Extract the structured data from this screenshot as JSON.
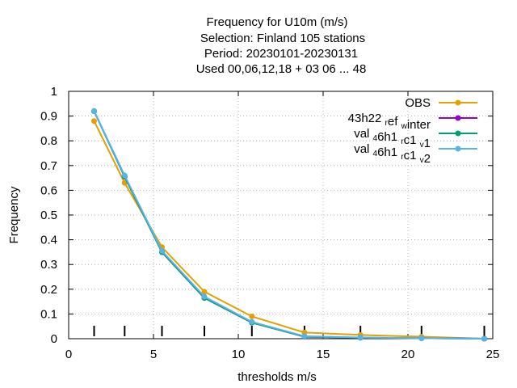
{
  "chart_data": {
    "type": "line",
    "title_lines": [
      "Frequency  for U10m (m/s)",
      "Selection: Finland    105 stations",
      "Period: 20230101-20230131",
      "Used  00,06,12,18  + 03 06 ... 48"
    ],
    "xlabel": "thresholds m/s",
    "ylabel": "Frequency",
    "xlim": [
      0,
      25
    ],
    "ylim": [
      0,
      1
    ],
    "xticks": [
      0,
      5,
      10,
      15,
      20,
      25
    ],
    "yticks": [
      0,
      0.1,
      0.2,
      0.3,
      0.4,
      0.5,
      0.6,
      0.7,
      0.8,
      0.9,
      1
    ],
    "grid": true,
    "legend_position": "top-right",
    "threshold_markers": [
      1.5,
      3.3,
      5.5,
      8.0,
      10.8,
      13.9,
      17.2,
      20.8,
      24.5
    ],
    "series": [
      {
        "name": "OBS",
        "label_parts": [
          {
            "t": "OBS"
          }
        ],
        "color": "#e69f00",
        "x": [
          1.5,
          3.3,
          5.5,
          8.0,
          10.8,
          13.9,
          17.2,
          20.8,
          24.5
        ],
        "y": [
          0.88,
          0.63,
          0.37,
          0.19,
          0.09,
          0.025,
          0.015,
          0.008,
          0.0
        ]
      },
      {
        "name": "43h22_ref_winter",
        "label_parts": [
          {
            "t": "43h22 "
          },
          {
            "t": "r",
            "sub": true
          },
          {
            "t": "ef "
          },
          {
            "t": "w",
            "sub": true
          },
          {
            "t": "inter"
          }
        ],
        "color": "#9400d3",
        "x": [
          1.5,
          3.3,
          5.5,
          8.0,
          10.8,
          13.9,
          17.2,
          20.8,
          24.5
        ],
        "y": [
          0.92,
          0.655,
          0.35,
          0.165,
          0.065,
          0.008,
          0.004,
          0.002,
          0.0
        ]
      },
      {
        "name": "val_46h1_rc1_v1",
        "label_parts": [
          {
            "t": "val "
          },
          {
            "t": "4",
            "sub": true
          },
          {
            "t": "6h1 "
          },
          {
            "t": "r",
            "sub": true
          },
          {
            "t": "c1 "
          },
          {
            "t": "v",
            "sub": true
          },
          {
            "t": "1"
          }
        ],
        "color": "#009e73",
        "x": [
          1.5,
          3.3,
          5.5,
          8.0,
          10.8,
          13.9,
          17.2,
          20.8,
          24.5
        ],
        "y": [
          0.92,
          0.655,
          0.35,
          0.165,
          0.065,
          0.008,
          0.004,
          0.002,
          0.0
        ]
      },
      {
        "name": "val_46h1_rc1_v2",
        "label_parts": [
          {
            "t": "val "
          },
          {
            "t": "4",
            "sub": true
          },
          {
            "t": "6h1 "
          },
          {
            "t": "r",
            "sub": true
          },
          {
            "t": "c1 "
          },
          {
            "t": "v",
            "sub": true
          },
          {
            "t": "2"
          }
        ],
        "color": "#56b4e9",
        "x": [
          1.5,
          3.3,
          5.5,
          8.0,
          10.8,
          13.9,
          17.2,
          20.8,
          24.5
        ],
        "y": [
          0.92,
          0.66,
          0.355,
          0.17,
          0.068,
          0.01,
          0.005,
          0.002,
          0.0
        ]
      }
    ]
  }
}
